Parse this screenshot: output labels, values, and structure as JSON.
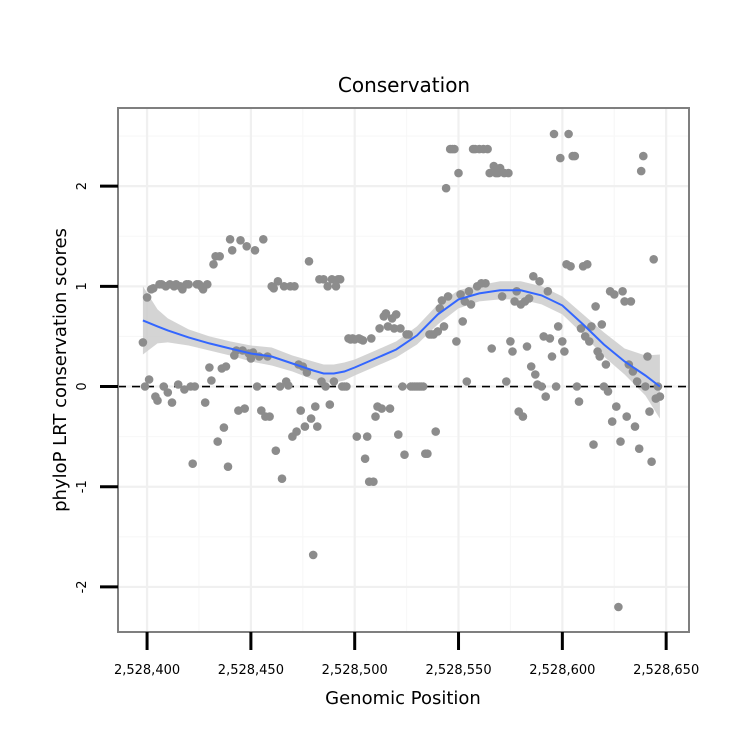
{
  "chart_data": {
    "type": "scatter",
    "title": "Conservation",
    "xlabel": "Genomic Position",
    "ylabel": "phyloP LRT conservation scores",
    "xlim": [
      2528386,
      2528661
    ],
    "ylim": [
      -2.45,
      2.78
    ],
    "x_ticks": [
      2528400,
      2528450,
      2528500,
      2528550,
      2528600,
      2528650
    ],
    "x_tick_labels": [
      "2,528,400",
      "2,528,450",
      "2,528,500",
      "2,528,550",
      "2,528,600",
      "2,528,650"
    ],
    "y_ticks": [
      -2,
      -1,
      0,
      1,
      2
    ],
    "y_tick_labels": [
      "-2",
      "-1",
      "0",
      "1",
      "2"
    ],
    "grid": true,
    "colors": {
      "points": "#8c8c8c",
      "smooth_line": "#3366ff",
      "confidence_band": "#cccccc",
      "reference_line": "#000000",
      "panel_border": "#7f7f7f"
    },
    "reference_line": {
      "y": 0,
      "style": "dashed"
    },
    "points": [
      [
        2528398,
        0.44
      ],
      [
        2528399,
        0.0
      ],
      [
        2528400,
        0.89
      ],
      [
        2528401,
        0.07
      ],
      [
        2528402,
        0.97
      ],
      [
        2528403,
        0.98
      ],
      [
        2528404,
        -0.1
      ],
      [
        2528405,
        -0.14
      ],
      [
        2528406,
        1.02
      ],
      [
        2528407,
        1.02
      ],
      [
        2528408,
        0.0
      ],
      [
        2528409,
        1.0
      ],
      [
        2528410,
        -0.06
      ],
      [
        2528411,
        1.02
      ],
      [
        2528412,
        -0.16
      ],
      [
        2528413,
        1.0
      ],
      [
        2528414,
        1.02
      ],
      [
        2528415,
        0.02
      ],
      [
        2528416,
        1.0
      ],
      [
        2528417,
        0.97
      ],
      [
        2528418,
        -0.03
      ],
      [
        2528419,
        1.02
      ],
      [
        2528420,
        1.02
      ],
      [
        2528421,
        0.0
      ],
      [
        2528422,
        -0.77
      ],
      [
        2528423,
        0.0
      ],
      [
        2528424,
        1.02
      ],
      [
        2528425,
        1.02
      ],
      [
        2528426,
        1.0
      ],
      [
        2528427,
        0.97
      ],
      [
        2528428,
        -0.16
      ],
      [
        2528429,
        1.02
      ],
      [
        2528430,
        0.19
      ],
      [
        2528431,
        0.06
      ],
      [
        2528432,
        1.22
      ],
      [
        2528433,
        1.3
      ],
      [
        2528434,
        -0.55
      ],
      [
        2528435,
        1.3
      ],
      [
        2528436,
        0.18
      ],
      [
        2528437,
        -0.41
      ],
      [
        2528438,
        0.2
      ],
      [
        2528439,
        -0.8
      ],
      [
        2528440,
        1.47
      ],
      [
        2528441,
        1.36
      ],
      [
        2528442,
        0.31
      ],
      [
        2528443,
        0.36
      ],
      [
        2528444,
        -0.24
      ],
      [
        2528445,
        1.46
      ],
      [
        2528446,
        0.36
      ],
      [
        2528447,
        -0.22
      ],
      [
        2528448,
        1.4
      ],
      [
        2528449,
        0.33
      ],
      [
        2528450,
        0.28
      ],
      [
        2528451,
        0.34
      ],
      [
        2528452,
        1.36
      ],
      [
        2528453,
        0.0
      ],
      [
        2528454,
        0.3
      ],
      [
        2528455,
        -0.24
      ],
      [
        2528456,
        1.47
      ],
      [
        2528457,
        -0.3
      ],
      [
        2528458,
        0.3
      ],
      [
        2528459,
        -0.3
      ],
      [
        2528460,
        1.0
      ],
      [
        2528461,
        0.98
      ],
      [
        2528462,
        -0.64
      ],
      [
        2528463,
        1.05
      ],
      [
        2528464,
        0.0
      ],
      [
        2528465,
        -0.92
      ],
      [
        2528466,
        1.0
      ],
      [
        2528467,
        0.05
      ],
      [
        2528468,
        0.01
      ],
      [
        2528469,
        1.0
      ],
      [
        2528470,
        -0.5
      ],
      [
        2528471,
        1.0
      ],
      [
        2528472,
        -0.45
      ],
      [
        2528473,
        0.22
      ],
      [
        2528474,
        -0.24
      ],
      [
        2528475,
        0.2
      ],
      [
        2528476,
        -0.4
      ],
      [
        2528477,
        0.14
      ],
      [
        2528478,
        1.25
      ],
      [
        2528479,
        -0.32
      ],
      [
        2528480,
        -1.68
      ],
      [
        2528481,
        -0.2
      ],
      [
        2528482,
        -0.4
      ],
      [
        2528483,
        1.07
      ],
      [
        2528484,
        0.05
      ],
      [
        2528485,
        1.07
      ],
      [
        2528486,
        0.0
      ],
      [
        2528487,
        1.0
      ],
      [
        2528488,
        -0.18
      ],
      [
        2528489,
        1.07
      ],
      [
        2528490,
        0.05
      ],
      [
        2528491,
        1.0
      ],
      [
        2528492,
        1.07
      ],
      [
        2528493,
        1.07
      ],
      [
        2528494,
        0.0
      ],
      [
        2528495,
        0.0
      ],
      [
        2528496,
        0.0
      ],
      [
        2528497,
        0.48
      ],
      [
        2528498,
        0.47
      ],
      [
        2528499,
        0.48
      ],
      [
        2528500,
        0.47
      ],
      [
        2528501,
        -0.5
      ],
      [
        2528502,
        0.48
      ],
      [
        2528503,
        0.47
      ],
      [
        2528504,
        0.46
      ],
      [
        2528505,
        -0.72
      ],
      [
        2528506,
        -0.5
      ],
      [
        2528507,
        -0.95
      ],
      [
        2528508,
        0.48
      ],
      [
        2528509,
        -0.95
      ],
      [
        2528510,
        -0.3
      ],
      [
        2528511,
        -0.2
      ],
      [
        2528512,
        0.58
      ],
      [
        2528513,
        -0.22
      ],
      [
        2528514,
        0.7
      ],
      [
        2528515,
        0.73
      ],
      [
        2528516,
        0.6
      ],
      [
        2528517,
        -0.22
      ],
      [
        2528518,
        0.68
      ],
      [
        2528519,
        0.58
      ],
      [
        2528520,
        0.72
      ],
      [
        2528521,
        -0.48
      ],
      [
        2528522,
        0.58
      ],
      [
        2528523,
        0.0
      ],
      [
        2528524,
        -0.68
      ],
      [
        2528525,
        0.52
      ],
      [
        2528526,
        0.52
      ],
      [
        2528527,
        0.0
      ],
      [
        2528528,
        0.0
      ],
      [
        2528529,
        0.0
      ],
      [
        2528530,
        0.0
      ],
      [
        2528531,
        0.0
      ],
      [
        2528532,
        0.0
      ],
      [
        2528533,
        0.0
      ],
      [
        2528534,
        -0.67
      ],
      [
        2528535,
        -0.67
      ],
      [
        2528536,
        0.52
      ],
      [
        2528537,
        0.52
      ],
      [
        2528538,
        0.52
      ],
      [
        2528539,
        -0.45
      ],
      [
        2528540,
        0.55
      ],
      [
        2528541,
        0.78
      ],
      [
        2528542,
        0.86
      ],
      [
        2528543,
        0.6
      ],
      [
        2528544,
        1.98
      ],
      [
        2528545,
        0.9
      ],
      [
        2528546,
        2.37
      ],
      [
        2528547,
        2.37
      ],
      [
        2528548,
        2.37
      ],
      [
        2528549,
        0.45
      ],
      [
        2528550,
        2.13
      ],
      [
        2528551,
        0.92
      ],
      [
        2528552,
        0.65
      ],
      [
        2528553,
        0.85
      ],
      [
        2528554,
        0.05
      ],
      [
        2528555,
        0.95
      ],
      [
        2528556,
        0.82
      ],
      [
        2528557,
        2.37
      ],
      [
        2528558,
        2.37
      ],
      [
        2528559,
        1.0
      ],
      [
        2528560,
        2.37
      ],
      [
        2528561,
        1.03
      ],
      [
        2528562,
        2.37
      ],
      [
        2528563,
        1.03
      ],
      [
        2528564,
        2.37
      ],
      [
        2528565,
        2.13
      ],
      [
        2528566,
        0.38
      ],
      [
        2528567,
        2.2
      ],
      [
        2528568,
        2.13
      ],
      [
        2528569,
        2.13
      ],
      [
        2528570,
        2.18
      ],
      [
        2528571,
        0.9
      ],
      [
        2528572,
        2.13
      ],
      [
        2528573,
        0.05
      ],
      [
        2528574,
        2.13
      ],
      [
        2528575,
        0.45
      ],
      [
        2528576,
        0.35
      ],
      [
        2528577,
        0.85
      ],
      [
        2528578,
        0.95
      ],
      [
        2528579,
        -0.25
      ],
      [
        2528580,
        0.82
      ],
      [
        2528581,
        -0.3
      ],
      [
        2528582,
        0.85
      ],
      [
        2528583,
        0.4
      ],
      [
        2528584,
        0.88
      ],
      [
        2528585,
        0.2
      ],
      [
        2528586,
        1.1
      ],
      [
        2528587,
        0.12
      ],
      [
        2528588,
        0.02
      ],
      [
        2528589,
        1.05
      ],
      [
        2528590,
        0.0
      ],
      [
        2528591,
        0.5
      ],
      [
        2528592,
        -0.1
      ],
      [
        2528593,
        0.95
      ],
      [
        2528594,
        0.48
      ],
      [
        2528595,
        0.3
      ],
      [
        2528596,
        2.52
      ],
      [
        2528597,
        0.0
      ],
      [
        2528598,
        0.6
      ],
      [
        2528599,
        2.28
      ],
      [
        2528600,
        0.45
      ],
      [
        2528601,
        0.35
      ],
      [
        2528602,
        1.22
      ],
      [
        2528603,
        2.52
      ],
      [
        2528604,
        1.2
      ],
      [
        2528605,
        2.3
      ],
      [
        2528606,
        2.3
      ],
      [
        2528607,
        0.0
      ],
      [
        2528608,
        -0.15
      ],
      [
        2528609,
        0.58
      ],
      [
        2528610,
        1.2
      ],
      [
        2528611,
        0.5
      ],
      [
        2528612,
        1.22
      ],
      [
        2528613,
        0.45
      ],
      [
        2528614,
        0.6
      ],
      [
        2528615,
        -0.58
      ],
      [
        2528616,
        0.8
      ],
      [
        2528617,
        0.35
      ],
      [
        2528618,
        0.3
      ],
      [
        2528619,
        0.62
      ],
      [
        2528620,
        0.0
      ],
      [
        2528621,
        0.22
      ],
      [
        2528622,
        -0.05
      ],
      [
        2528623,
        0.95
      ],
      [
        2528624,
        -0.35
      ],
      [
        2528625,
        0.92
      ],
      [
        2528626,
        -0.2
      ],
      [
        2528627,
        -2.2
      ],
      [
        2528628,
        -0.55
      ],
      [
        2528629,
        0.95
      ],
      [
        2528630,
        0.85
      ],
      [
        2528631,
        -0.3
      ],
      [
        2528632,
        0.22
      ],
      [
        2528633,
        0.85
      ],
      [
        2528634,
        0.15
      ],
      [
        2528635,
        -0.4
      ],
      [
        2528636,
        0.05
      ],
      [
        2528637,
        -0.62
      ],
      [
        2528638,
        2.15
      ],
      [
        2528639,
        2.3
      ],
      [
        2528640,
        0.0
      ],
      [
        2528641,
        0.3
      ],
      [
        2528642,
        -0.25
      ],
      [
        2528643,
        -0.75
      ],
      [
        2528644,
        1.27
      ],
      [
        2528645,
        -0.12
      ],
      [
        2528646,
        0.0
      ],
      [
        2528647,
        -0.1
      ]
    ],
    "smooth": {
      "x": [
        2528398,
        2528405,
        2528410,
        2528420,
        2528430,
        2528440,
        2528450,
        2528460,
        2528470,
        2528480,
        2528485,
        2528490,
        2528495,
        2528500,
        2528510,
        2528520,
        2528530,
        2528540,
        2528550,
        2528560,
        2528570,
        2528580,
        2528590,
        2528600,
        2528610,
        2528620,
        2528630,
        2528640,
        2528647
      ],
      "y": [
        0.66,
        0.6,
        0.56,
        0.49,
        0.43,
        0.38,
        0.33,
        0.3,
        0.23,
        0.16,
        0.13,
        0.13,
        0.15,
        0.19,
        0.28,
        0.37,
        0.51,
        0.72,
        0.87,
        0.93,
        0.96,
        0.96,
        0.91,
        0.81,
        0.62,
        0.42,
        0.25,
        0.11,
        0.0
      ],
      "lo": [
        0.32,
        0.43,
        0.44,
        0.41,
        0.36,
        0.31,
        0.25,
        0.21,
        0.15,
        0.07,
        0.04,
        0.04,
        0.06,
        0.11,
        0.2,
        0.29,
        0.42,
        0.62,
        0.78,
        0.85,
        0.87,
        0.87,
        0.82,
        0.72,
        0.52,
        0.3,
        0.12,
        -0.09,
        -0.32
      ],
      "hi": [
        1.0,
        0.77,
        0.68,
        0.57,
        0.5,
        0.45,
        0.41,
        0.39,
        0.31,
        0.25,
        0.22,
        0.22,
        0.24,
        0.27,
        0.36,
        0.45,
        0.6,
        0.82,
        0.96,
        1.01,
        1.05,
        1.05,
        1.0,
        0.9,
        0.72,
        0.54,
        0.38,
        0.31,
        0.32
      ]
    }
  }
}
